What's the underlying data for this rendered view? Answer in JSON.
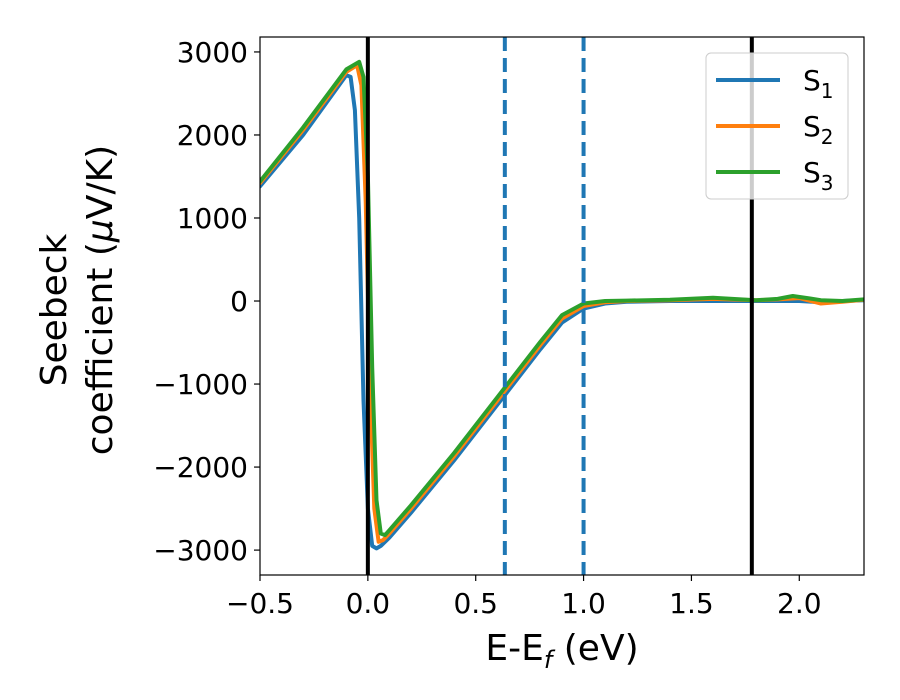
{
  "chart_data": {
    "type": "line",
    "title": "",
    "xlabel": "E-E",
    "xlabel_sub": "f",
    "xlabel_unit": " (eV)",
    "ylabel_line1": "Seebeck",
    "ylabel_line2_pre": "coefficient  (",
    "ylabel_mu": "μ",
    "ylabel_line2_post": "V/K)",
    "xlim": [
      -0.5,
      2.3
    ],
    "ylim": [
      -3300,
      3180
    ],
    "x_ticks": [
      -0.5,
      0.0,
      0.5,
      1.0,
      1.5,
      2.0
    ],
    "x_tick_labels": [
      "−0.5",
      "0.0",
      "0.5",
      "1.0",
      "1.5",
      "2.0"
    ],
    "y_ticks": [
      3000,
      2000,
      1000,
      0,
      -1000,
      -2000,
      -3000
    ],
    "y_tick_labels": [
      "3000",
      "2000",
      "1000",
      "0",
      "−1000",
      "−2000",
      "−3000"
    ],
    "grid": false,
    "legend_position": "top-right",
    "vlines": [
      {
        "x": 0.0,
        "style": "solid",
        "color": "#000000"
      },
      {
        "x": 0.635,
        "style": "dashed",
        "color": "#1f77b4"
      },
      {
        "x": 1.0,
        "style": "dashed",
        "color": "#1f77b4"
      },
      {
        "x": 1.78,
        "style": "solid",
        "color": "#000000"
      }
    ],
    "series": [
      {
        "name": "S",
        "sub": "1",
        "color": "#1f77b4",
        "points": [
          [
            -0.5,
            1380
          ],
          [
            -0.3,
            2000
          ],
          [
            -0.1,
            2720
          ],
          [
            -0.08,
            2700
          ],
          [
            -0.06,
            2300
          ],
          [
            -0.04,
            1000
          ],
          [
            -0.02,
            -1200
          ],
          [
            0.0,
            -2500
          ],
          [
            0.02,
            -2950
          ],
          [
            0.04,
            -2980
          ],
          [
            0.06,
            -2950
          ],
          [
            0.1,
            -2850
          ],
          [
            0.2,
            -2550
          ],
          [
            0.4,
            -1920
          ],
          [
            0.6,
            -1250
          ],
          [
            0.8,
            -580
          ],
          [
            0.9,
            -260
          ],
          [
            1.0,
            -90
          ],
          [
            1.1,
            -30
          ],
          [
            1.2,
            -10
          ],
          [
            1.4,
            0
          ],
          [
            1.6,
            0
          ],
          [
            1.8,
            0
          ],
          [
            2.0,
            0
          ],
          [
            2.1,
            -15
          ],
          [
            2.2,
            0
          ],
          [
            2.3,
            10
          ]
        ]
      },
      {
        "name": "S",
        "sub": "2",
        "color": "#ff7f0e",
        "points": [
          [
            -0.5,
            1420
          ],
          [
            -0.3,
            2060
          ],
          [
            -0.1,
            2760
          ],
          [
            -0.05,
            2840
          ],
          [
            -0.03,
            2600
          ],
          [
            -0.01,
            1200
          ],
          [
            0.01,
            -1000
          ],
          [
            0.03,
            -2500
          ],
          [
            0.05,
            -2900
          ],
          [
            0.07,
            -2880
          ],
          [
            0.1,
            -2800
          ],
          [
            0.2,
            -2500
          ],
          [
            0.4,
            -1870
          ],
          [
            0.6,
            -1200
          ],
          [
            0.8,
            -530
          ],
          [
            0.9,
            -210
          ],
          [
            1.0,
            -60
          ],
          [
            1.1,
            -15
          ],
          [
            1.2,
            0
          ],
          [
            1.4,
            10
          ],
          [
            1.6,
            25
          ],
          [
            1.8,
            10
          ],
          [
            1.9,
            20
          ],
          [
            2.0,
            35
          ],
          [
            2.1,
            -30
          ],
          [
            2.2,
            -10
          ],
          [
            2.3,
            15
          ]
        ]
      },
      {
        "name": "S",
        "sub": "3",
        "color": "#2ca02c",
        "points": [
          [
            -0.5,
            1440
          ],
          [
            -0.3,
            2090
          ],
          [
            -0.1,
            2790
          ],
          [
            -0.04,
            2880
          ],
          [
            -0.02,
            2700
          ],
          [
            0.0,
            1500
          ],
          [
            0.02,
            -800
          ],
          [
            0.04,
            -2400
          ],
          [
            0.06,
            -2800
          ],
          [
            0.08,
            -2820
          ],
          [
            0.1,
            -2760
          ],
          [
            0.2,
            -2460
          ],
          [
            0.4,
            -1830
          ],
          [
            0.6,
            -1160
          ],
          [
            0.8,
            -490
          ],
          [
            0.9,
            -170
          ],
          [
            1.0,
            -30
          ],
          [
            1.1,
            0
          ],
          [
            1.2,
            5
          ],
          [
            1.4,
            15
          ],
          [
            1.6,
            40
          ],
          [
            1.8,
            10
          ],
          [
            1.9,
            25
          ],
          [
            1.97,
            60
          ],
          [
            2.05,
            30
          ],
          [
            2.1,
            10
          ],
          [
            2.2,
            0
          ],
          [
            2.3,
            20
          ]
        ]
      }
    ]
  }
}
